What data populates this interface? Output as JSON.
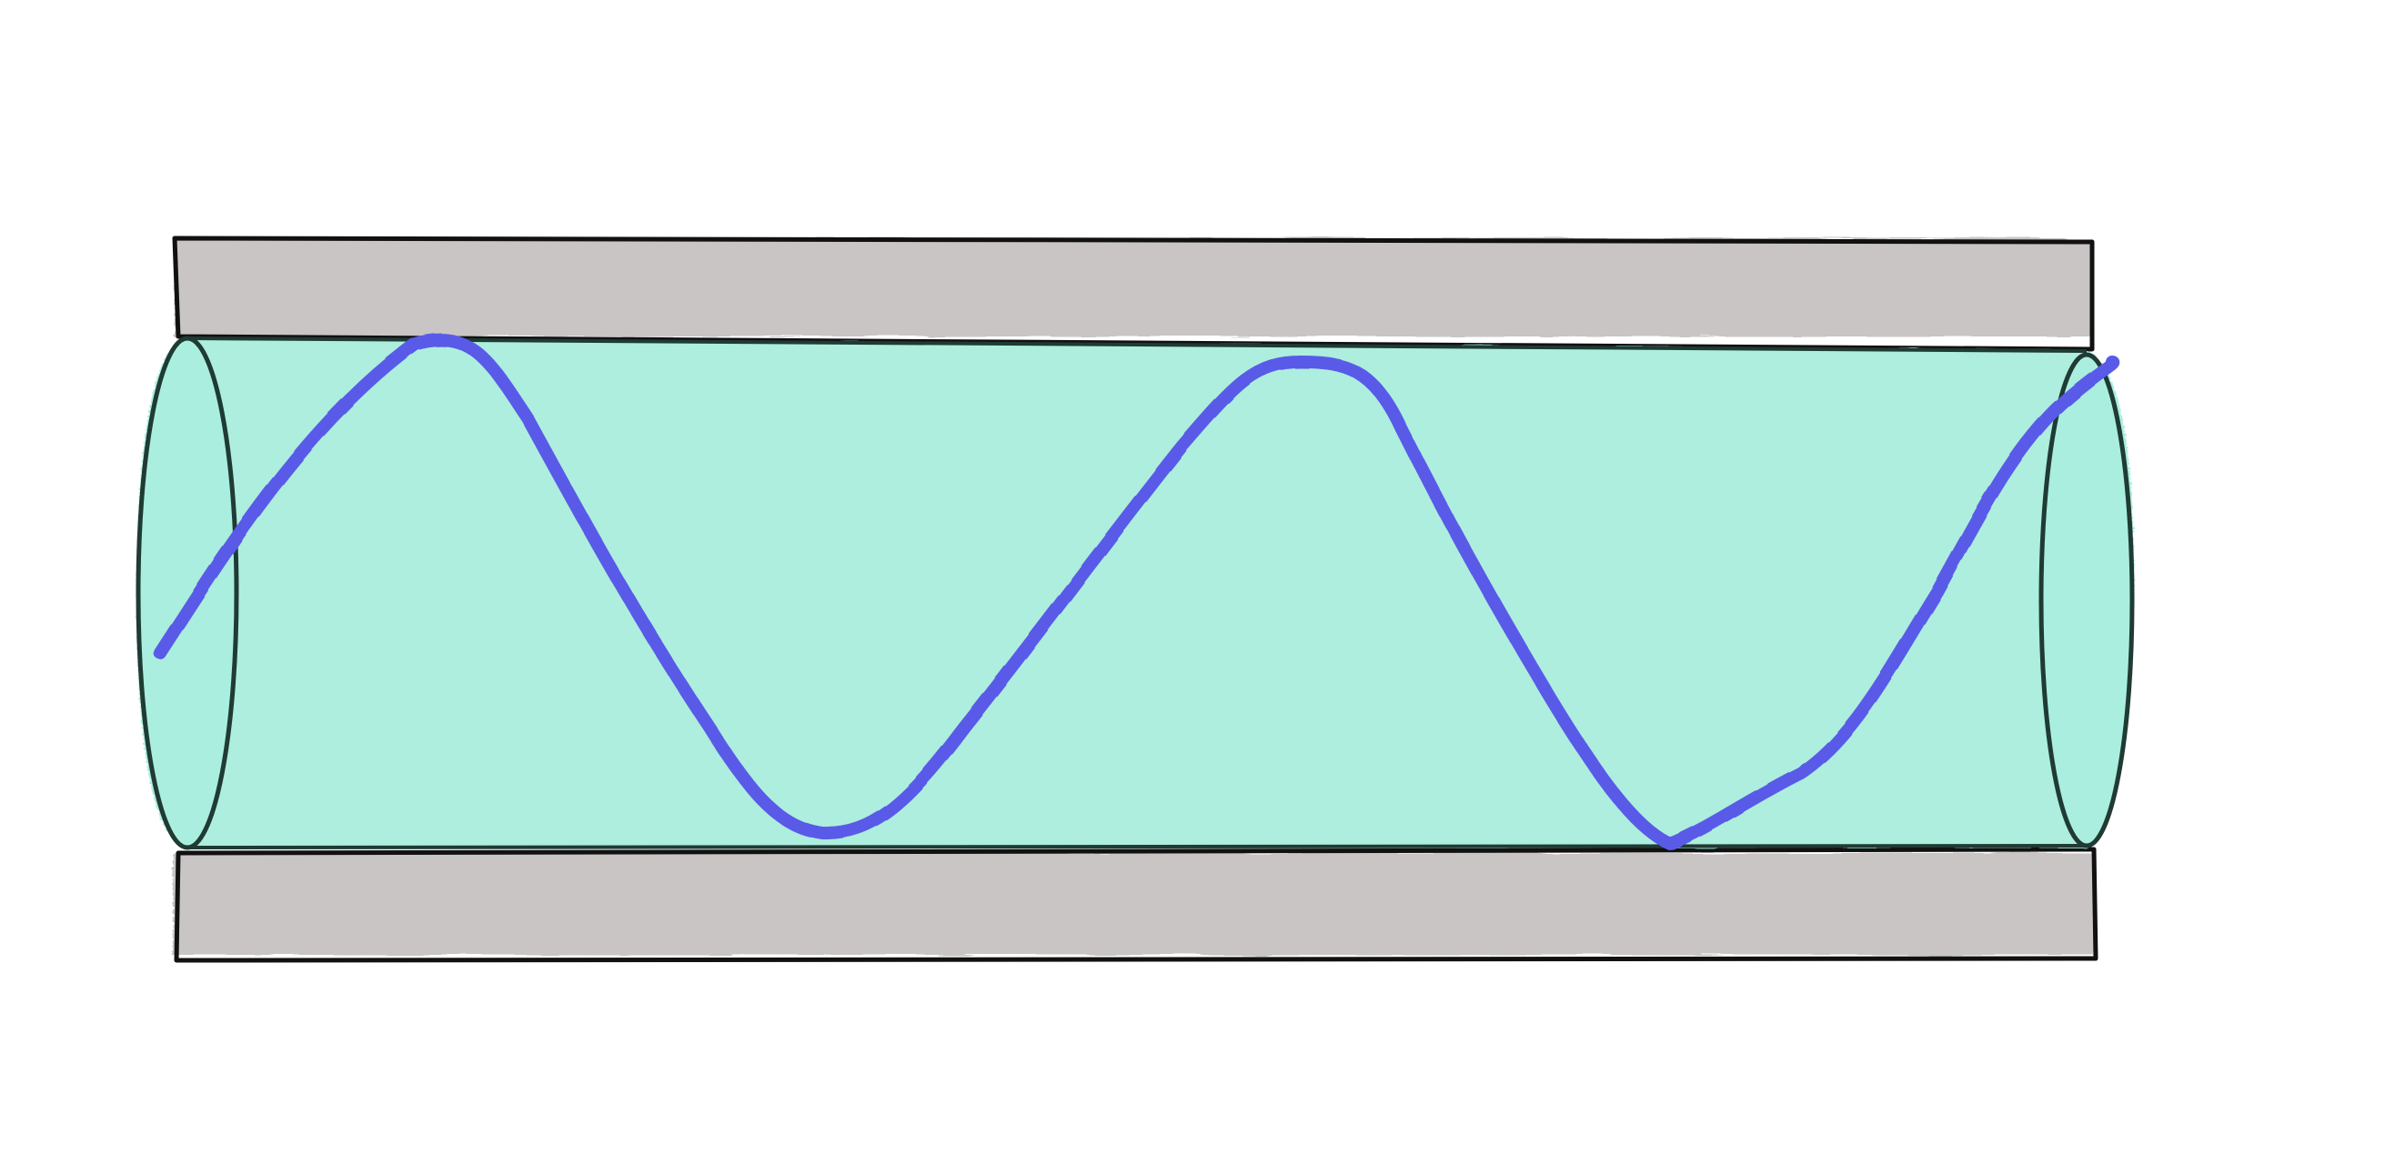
{
  "diagram": {
    "subject": "waveguide-cross-section",
    "components": [
      {
        "name": "upper-cladding-plate",
        "fill": "#c9c5c5"
      },
      {
        "name": "core-cylinder",
        "fill": "#9fecd9"
      },
      {
        "name": "lower-cladding-plate",
        "fill": "#c9c5c5"
      },
      {
        "name": "propagating-wave",
        "stroke": "#5a5ae8"
      }
    ],
    "colors": {
      "background": "#ffffff",
      "outline": "#111111",
      "cylinder_outline": "#1f3b33",
      "plate_fill": "#c9c5c5",
      "core_fill": "#9fecd9",
      "wave": "#5a5ae8"
    },
    "wave": {
      "full_periods_visible": 2
    },
    "labels": []
  }
}
